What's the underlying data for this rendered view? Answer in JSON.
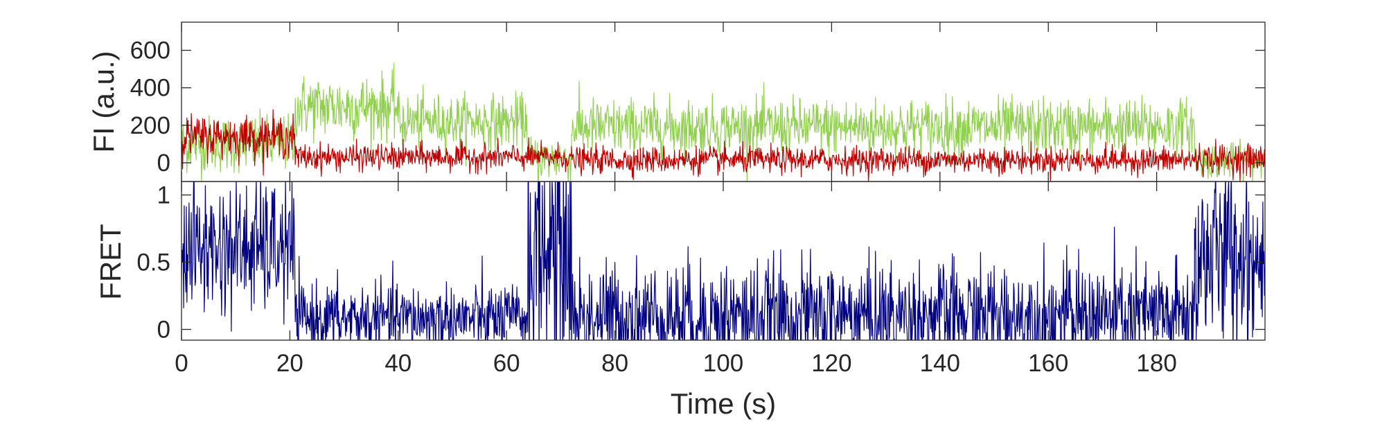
{
  "chart_data": [
    {
      "type": "line",
      "panel": "top",
      "title": "",
      "xlabel": "",
      "ylabel": "FI (a.u.)",
      "xlim": [
        0,
        200
      ],
      "ylim": [
        -100,
        750
      ],
      "yticks": [
        0,
        200,
        400,
        600
      ],
      "ytick_labels": [
        "0",
        "200",
        "400",
        "600"
      ],
      "series": [
        {
          "color": "#92d050",
          "segments": [
            {
              "t": [
                0,
                21
              ],
              "mean": 100,
              "sd": 75
            },
            {
              "t": [
                21,
                40
              ],
              "mean": 300,
              "sd": 85
            },
            {
              "t": [
                40,
                64
              ],
              "mean": 220,
              "sd": 70
            },
            {
              "t": [
                64,
                72
              ],
              "mean": 20,
              "sd": 60
            },
            {
              "t": [
                72,
                187
              ],
              "mean": 190,
              "sd": 75
            },
            {
              "t": [
                187,
                200
              ],
              "mean": 10,
              "sd": 45
            }
          ]
        },
        {
          "color": "#c00000",
          "segments": [
            {
              "t": [
                0,
                21
              ],
              "mean": 140,
              "sd": 55
            },
            {
              "t": [
                21,
                64
              ],
              "mean": 30,
              "sd": 35
            },
            {
              "t": [
                64,
                72
              ],
              "mean": 30,
              "sd": 35
            },
            {
              "t": [
                72,
                187
              ],
              "mean": 15,
              "sd": 35
            },
            {
              "t": [
                187,
                200
              ],
              "mean": 20,
              "sd": 40
            }
          ]
        }
      ]
    },
    {
      "type": "line",
      "panel": "bottom",
      "title": "",
      "xlabel": "Time (s)",
      "ylabel": "FRET",
      "xlim": [
        0,
        200
      ],
      "ylim": [
        -0.08,
        1.1
      ],
      "yticks": [
        0,
        0.5,
        1
      ],
      "ytick_labels": [
        "0",
        "0.5",
        "1"
      ],
      "xticks": [
        0,
        20,
        40,
        60,
        80,
        100,
        120,
        140,
        160,
        180
      ],
      "xtick_labels": [
        "0",
        "20",
        "40",
        "60",
        "80",
        "100",
        "120",
        "140",
        "160",
        "180"
      ],
      "series": [
        {
          "color": "#000080",
          "segments": [
            {
              "t": [
                0,
                21
              ],
              "mean": 0.6,
              "sd": 0.25
            },
            {
              "t": [
                21,
                64
              ],
              "mean": 0.08,
              "sd": 0.13
            },
            {
              "t": [
                64,
                72
              ],
              "mean": 0.6,
              "sd": 0.45
            },
            {
              "t": [
                72,
                187
              ],
              "mean": 0.1,
              "sd": 0.2
            },
            {
              "t": [
                187,
                200
              ],
              "mean": 0.55,
              "sd": 0.35
            }
          ]
        }
      ]
    }
  ]
}
